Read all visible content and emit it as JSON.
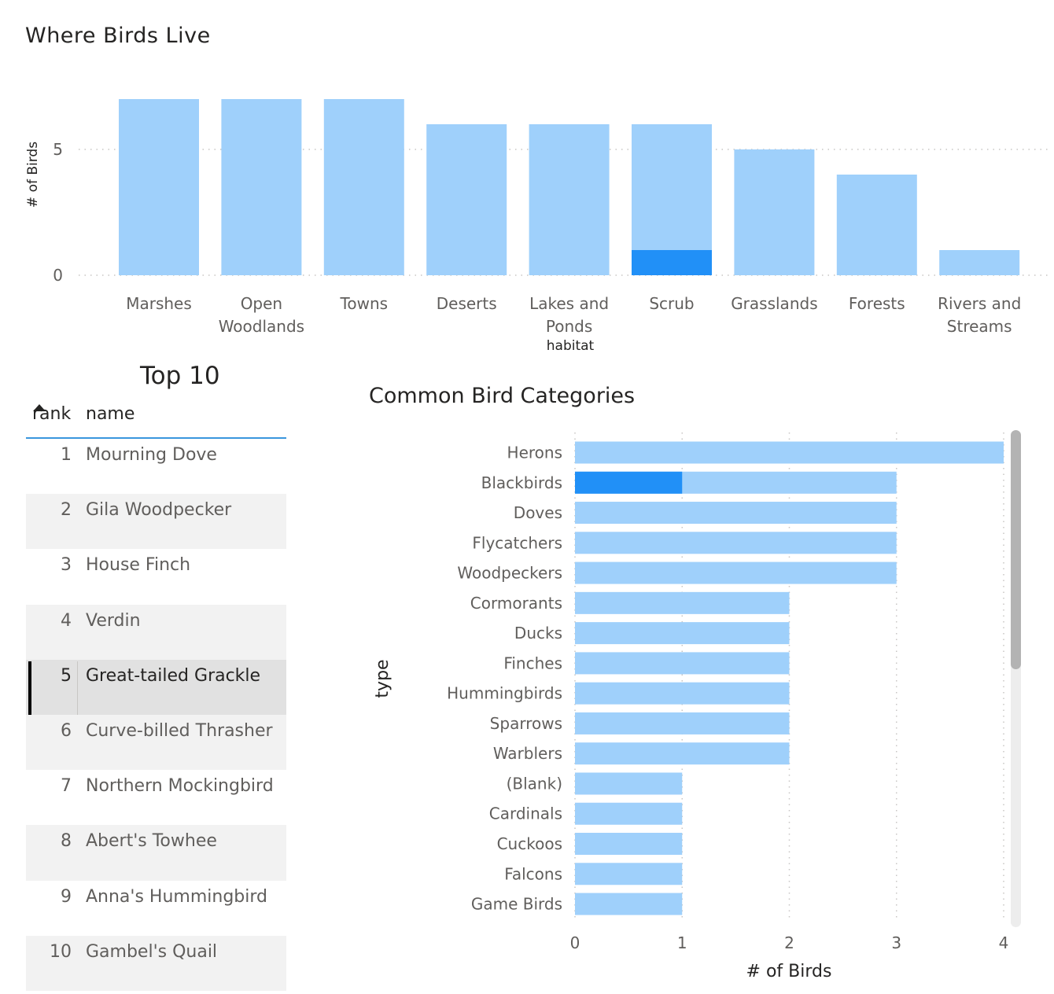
{
  "colors": {
    "bar": "#9fd0fb",
    "highlight": "#2190f7",
    "header_line": "#3a96dd"
  },
  "habitat_chart": {
    "title": "Where Birds Live"
  },
  "top10": {
    "title": "Top 10",
    "columns": {
      "rank": "rank",
      "name": "name"
    },
    "rows": [
      {
        "rank": "1",
        "name": "Mourning Dove"
      },
      {
        "rank": "2",
        "name": "Gila Woodpecker"
      },
      {
        "rank": "3",
        "name": "House Finch"
      },
      {
        "rank": "4",
        "name": "Verdin"
      },
      {
        "rank": "5",
        "name": "Great-tailed Grackle",
        "selected": true
      },
      {
        "rank": "6",
        "name": "Curve-billed Thrasher"
      },
      {
        "rank": "7",
        "name": "Northern Mockingbird"
      },
      {
        "rank": "8",
        "name": "Abert's Towhee"
      },
      {
        "rank": "9",
        "name": "Anna's Hummingbird"
      },
      {
        "rank": "10",
        "name": "Gambel's Quail"
      }
    ]
  },
  "category_chart": {
    "title": "Common Bird Categories"
  },
  "chart_data": [
    {
      "type": "bar",
      "orientation": "vertical",
      "title": "Where Birds Live",
      "xlabel": "habitat",
      "ylabel": "# of Birds",
      "categories": [
        "Marshes",
        "Open Woodlands",
        "Towns",
        "Deserts",
        "Lakes and Ponds",
        "Scrub",
        "Grasslands",
        "Forests",
        "Rivers and Streams"
      ],
      "category_labels": [
        [
          "Marshes"
        ],
        [
          "Open",
          "Woodlands"
        ],
        [
          "Towns"
        ],
        [
          "Deserts"
        ],
        [
          "Lakes and",
          "Ponds"
        ],
        [
          "Scrub"
        ],
        [
          "Grasslands"
        ],
        [
          "Forests"
        ],
        [
          "Rivers and",
          "Streams"
        ]
      ],
      "series": [
        {
          "name": "# of Birds",
          "values": [
            7,
            7,
            7,
            6,
            6,
            6,
            5,
            4,
            1
          ]
        },
        {
          "name": "highlighted",
          "values": [
            0,
            0,
            0,
            0,
            0,
            1,
            0,
            0,
            0
          ]
        }
      ],
      "yticks": [
        0,
        5
      ],
      "ylim": [
        0,
        7.5
      ],
      "grid": true
    },
    {
      "type": "bar",
      "orientation": "horizontal",
      "title": "Common Bird Categories",
      "xlabel": "# of Birds",
      "ylabel": "type",
      "categories": [
        "Herons",
        "Blackbirds",
        "Doves",
        "Flycatchers",
        "Woodpeckers",
        "Cormorants",
        "Ducks",
        "Finches",
        "Hummingbirds",
        "Sparrows",
        "Warblers",
        "(Blank)",
        "Cardinals",
        "Cuckoos",
        "Falcons",
        "Game Birds"
      ],
      "series": [
        {
          "name": "# of Birds",
          "values": [
            4,
            3,
            3,
            3,
            3,
            2,
            2,
            2,
            2,
            2,
            2,
            1,
            1,
            1,
            1,
            1
          ]
        },
        {
          "name": "highlighted",
          "values": [
            0,
            1,
            0,
            0,
            0,
            0,
            0,
            0,
            0,
            0,
            0,
            0,
            0,
            0,
            0,
            0
          ]
        }
      ],
      "xticks": [
        0,
        1,
        2,
        3,
        4
      ],
      "xlim": [
        0,
        4
      ],
      "grid": true
    }
  ]
}
